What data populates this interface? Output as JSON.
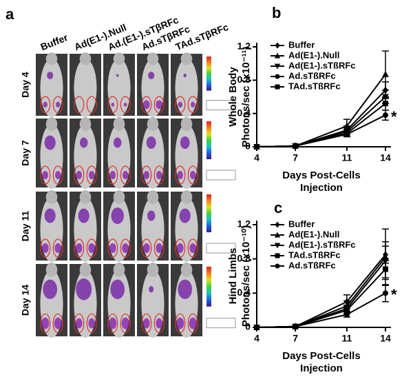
{
  "panel_a": {
    "label": "a",
    "columns": [
      "Buffer",
      "Ad(E1-).Null",
      "Ad.(E1-).sTβRFc",
      "Ad.sTβRFc",
      "TAd.sTβRFc"
    ],
    "rows": [
      "Day 4",
      "Day 7",
      "Day 11",
      "Day 14"
    ]
  },
  "chart_data": [
    {
      "type": "line",
      "panel_label": "b",
      "ylabel": [
        "Whole Body",
        "Photons/sec (x10⁻¹¹)"
      ],
      "xlabel": [
        "Days Post-Cells",
        "Injection"
      ],
      "x": [
        4,
        7,
        11,
        14
      ],
      "xlim": [
        4,
        14
      ],
      "xticks": [
        4,
        7,
        11,
        14
      ],
      "ylim": [
        0,
        1.2
      ],
      "yticks": [
        0,
        0.4,
        0.8,
        1.2
      ],
      "annotation": "*",
      "series": [
        {
          "name": "Buffer",
          "marker": "diamond",
          "color": "#000000",
          "values": [
            0,
            0.01,
            0.2,
            0.68
          ],
          "errors": [
            0,
            0,
            0.05,
            0.1
          ]
        },
        {
          "name": "Ad(E1-).Null",
          "marker": "triangle-up",
          "color": "#000000",
          "values": [
            0,
            0.01,
            0.25,
            0.87
          ],
          "errors": [
            0,
            0,
            0.08,
            0.28
          ]
        },
        {
          "name": "Ad(E1-).sTßRFc",
          "marker": "triangle-down",
          "color": "#000000",
          "values": [
            0,
            0.01,
            0.18,
            0.6
          ],
          "errors": [
            0,
            0,
            0.03,
            0.08
          ]
        },
        {
          "name": "Ad.sTßRFc",
          "marker": "circle",
          "color": "#000000",
          "values": [
            0,
            0.01,
            0.15,
            0.38
          ],
          "errors": [
            0,
            0,
            0.03,
            0.06
          ]
        },
        {
          "name": "TAd.sTßRFc",
          "marker": "square",
          "color": "#000000",
          "values": [
            0,
            0.01,
            0.16,
            0.52
          ],
          "errors": [
            0,
            0,
            0.03,
            0.08
          ]
        }
      ]
    },
    {
      "type": "line",
      "panel_label": "c",
      "ylabel": [
        "Hind Limbs",
        "Photons/sec (x10⁻¹⁰)"
      ],
      "xlabel": [
        "Days Post-Cells",
        "Injection"
      ],
      "x": [
        4,
        7,
        11,
        14
      ],
      "xlim": [
        4,
        14
      ],
      "xticks": [
        4,
        7,
        11,
        14
      ],
      "ylim": [
        0,
        1.2
      ],
      "yticks": [
        0,
        0.4,
        0.8,
        1.2
      ],
      "annotation": "*",
      "series": [
        {
          "name": "Buffer",
          "marker": "diamond",
          "color": "#000000",
          "values": [
            0,
            0.01,
            0.3,
            0.85
          ],
          "errors": [
            0,
            0,
            0.08,
            0.1
          ]
        },
        {
          "name": "Ad(E1-).Null",
          "marker": "triangle-up",
          "color": "#000000",
          "values": [
            0,
            0.01,
            0.25,
            0.82
          ],
          "errors": [
            0,
            0,
            0.06,
            0.33
          ]
        },
        {
          "name": "Ad(E1-).sTßRFc",
          "marker": "triangle-down",
          "color": "#000000",
          "values": [
            0,
            0.01,
            0.22,
            0.78
          ],
          "errors": [
            0,
            0,
            0.04,
            0.22
          ]
        },
        {
          "name": "TAd.sTßRFc",
          "marker": "square",
          "color": "#000000",
          "values": [
            0,
            0.01,
            0.2,
            0.68
          ],
          "errors": [
            0,
            0,
            0.04,
            0.1
          ]
        },
        {
          "name": "Ad.sTßRFc",
          "marker": "circle",
          "color": "#000000",
          "values": [
            0,
            0.01,
            0.15,
            0.4
          ],
          "errors": [
            0,
            0,
            0.03,
            0.1
          ]
        }
      ]
    }
  ]
}
